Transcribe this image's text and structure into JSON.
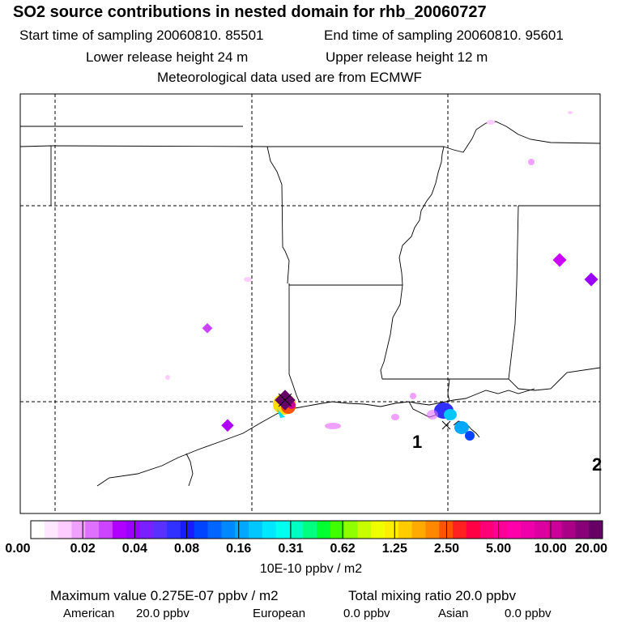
{
  "title": "SO2 source contributions in nested domain for rhb_20060727",
  "sampling": {
    "start": "Start time of sampling 20060810. 85501",
    "end": "End time of sampling 20060810. 95601"
  },
  "release": {
    "lower": "Lower release height   24 m",
    "upper": "Upper release height   12 m"
  },
  "met_note": "Meteorological data used are from ECMWF",
  "map_labels": {
    "marker1": "1",
    "marker2": "2"
  },
  "colorbar": {
    "tick_labels": [
      "0.00",
      "0.02",
      "0.04",
      "0.08",
      "0.16",
      "0.31",
      "0.62",
      "1.25",
      "2.50",
      "5.00",
      "10.00",
      "20.00"
    ],
    "unit": "10E-10 ppbv / m2",
    "colors": [
      "#ffffff",
      "#ffe8ff",
      "#ffccff",
      "#f0a0ff",
      "#e070ff",
      "#cc44ff",
      "#b000ff",
      "#9a00ff",
      "#7a20ff",
      "#5a30ff",
      "#3030ff",
      "#1a1aff",
      "#0044ff",
      "#0066ff",
      "#0088ff",
      "#00a8ff",
      "#00c8ff",
      "#00e8ff",
      "#00fff0",
      "#00ffc0",
      "#00ff80",
      "#00ff30",
      "#40ff00",
      "#90ff00",
      "#c8ff00",
      "#f0ff00",
      "#ffee00",
      "#ffcc00",
      "#ffaa00",
      "#ff8800",
      "#ff5500",
      "#ff2020",
      "#ff0044",
      "#ff0077",
      "#ff0099",
      "#ff00aa",
      "#ee00aa",
      "#dd00a0",
      "#cc0099",
      "#aa0088",
      "#880077",
      "#660066"
    ]
  },
  "stats": {
    "max": "Maximum value  0.275E-07 ppbv / m2",
    "total": "Total mixing ratio      20.0 ppbv"
  },
  "regions": {
    "american": "American",
    "american_val": "20.0 ppbv",
    "european": "European",
    "european_val": "0.0 ppbv",
    "asian": "Asian",
    "asian_val": "0.0 ppbv"
  }
}
